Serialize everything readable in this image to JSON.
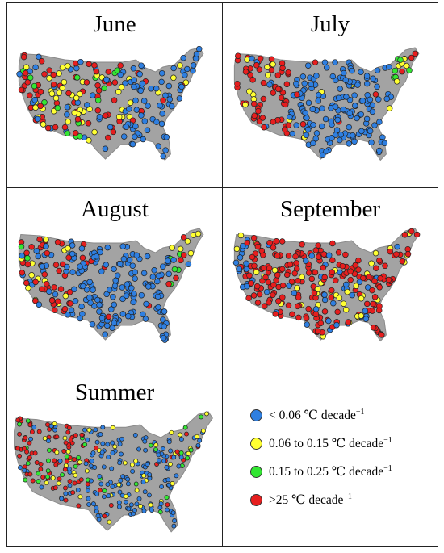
{
  "panels": [
    {
      "id": "june",
      "title": "June",
      "dominant": [
        "blue",
        "red",
        "yellow"
      ]
    },
    {
      "id": "july",
      "title": "July",
      "dominant": [
        "blue",
        "red",
        "yellow"
      ]
    },
    {
      "id": "august",
      "title": "August",
      "dominant": [
        "blue",
        "red",
        "yellow"
      ]
    },
    {
      "id": "september",
      "title": "September",
      "dominant": [
        "red",
        "yellow",
        "blue"
      ]
    },
    {
      "id": "summer",
      "title": "Summer",
      "dominant": [
        "blue",
        "red",
        "yellow",
        "green"
      ]
    }
  ],
  "legend": {
    "items": [
      {
        "color_key": "blue",
        "label": "< 0.06 ℃ decade",
        "exp": "−1"
      },
      {
        "color_key": "yellow",
        "label": "0.06 to 0.15 ℃ decade",
        "exp": "−1"
      },
      {
        "color_key": "green",
        "label": "0.15 to 0.25 ℃ decade",
        "exp": "−1"
      },
      {
        "color_key": "red",
        "label": ">25 ℃ decade",
        "exp": "−1"
      }
    ]
  },
  "colors": {
    "blue": "#2f7fe0",
    "yellow": "#ffff33",
    "green": "#33e633",
    "red": "#e61e1e",
    "land": "#a3a3a3",
    "border": "#222222"
  }
}
